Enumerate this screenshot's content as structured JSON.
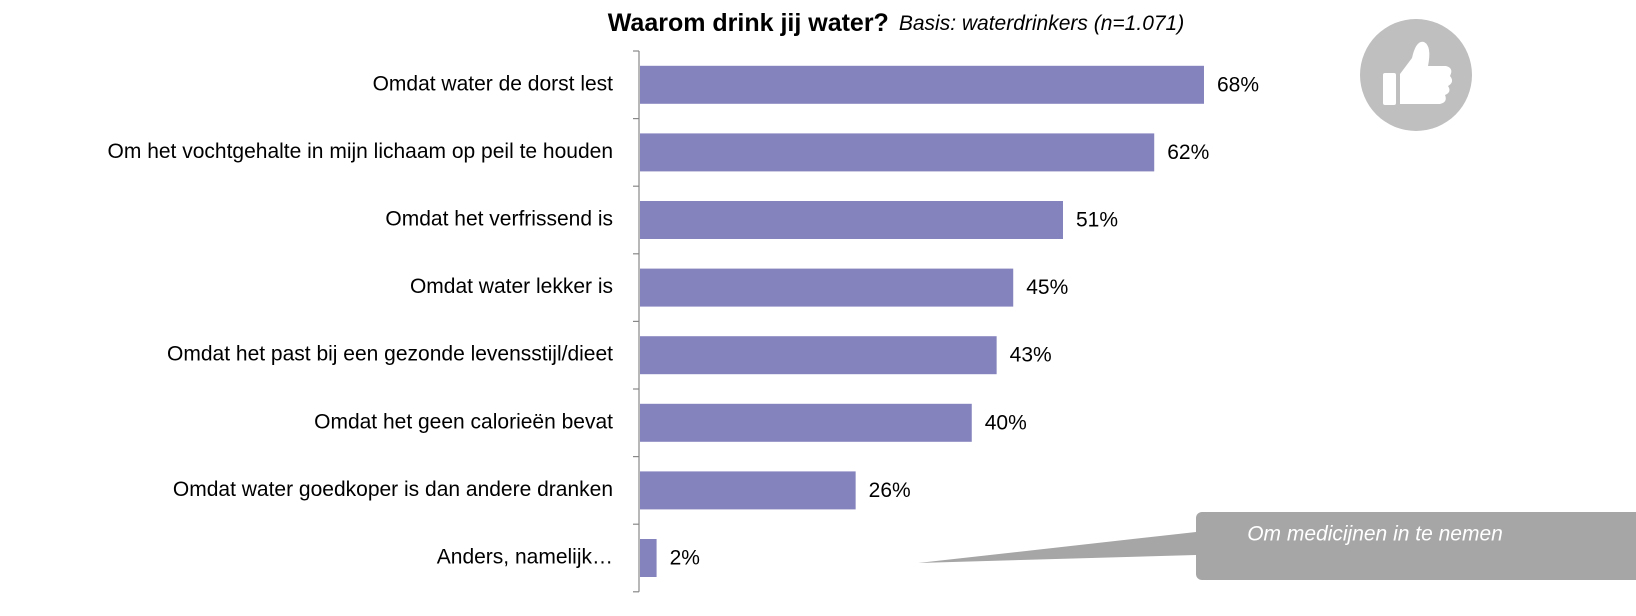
{
  "chart_data": {
    "type": "bar",
    "orientation": "horizontal",
    "title": "Waarom drink jij water?",
    "subtitle": "Basis: waterdrinkers (n=1.071)",
    "categories": [
      "Omdat water de dorst lest",
      "Om het vochtgehalte in mijn lichaam op peil te houden",
      "Omdat het verfrissend is",
      "Omdat water lekker is",
      "Omdat het past bij een gezonde levensstijl/dieet",
      "Omdat het geen calorieën bevat",
      "Omdat water goedkoper is dan andere dranken",
      "Anders, namelijk…"
    ],
    "values": [
      68,
      62,
      51,
      45,
      43,
      40,
      26,
      2
    ],
    "value_labels": [
      "68%",
      "62%",
      "51%",
      "45%",
      "43%",
      "40%",
      "26%",
      "2%"
    ],
    "color": "#8583bd",
    "annotation": "Om medicijnen in te nemen"
  }
}
